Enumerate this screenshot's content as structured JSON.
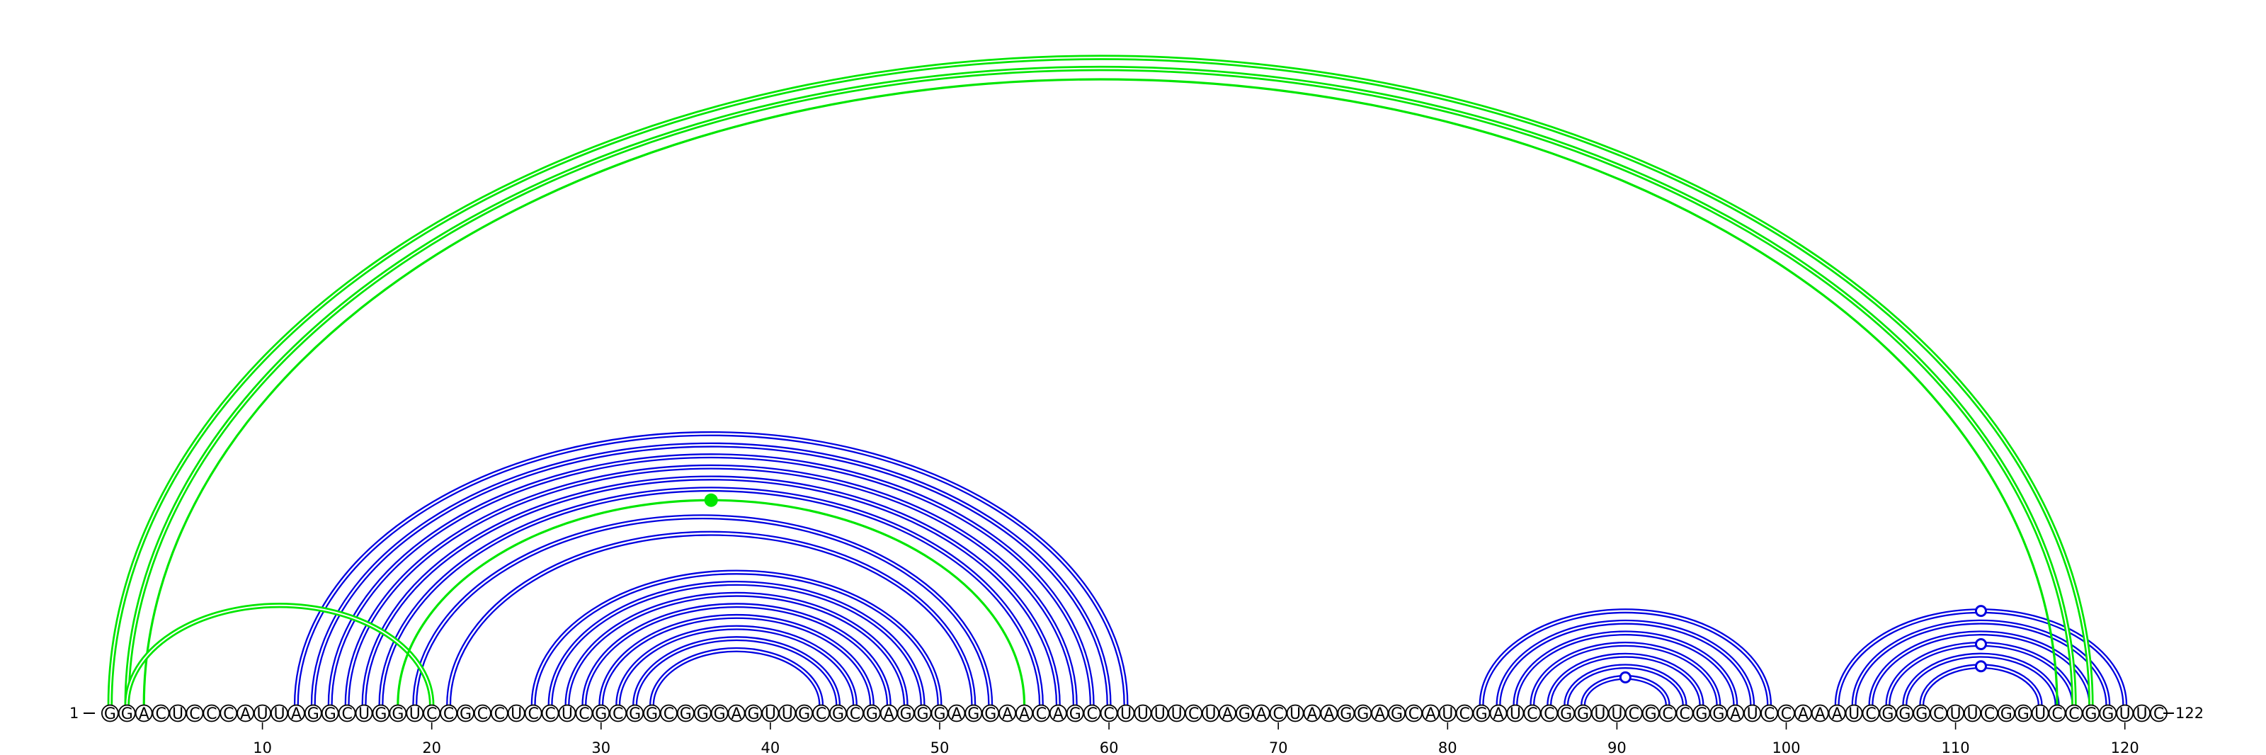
{
  "sequence": "GGACUCCCAUUAGGCUGGUCCGCCUCCUCGCGGCGGGAGUUGCGCGAGGGAGGAACAGCCUUUUCUAGACUAAGGAGCAUCGAUCCGGUUCGCCGGAUCCAAAUCGGGCUUCGGUCCGGUUC",
  "start_label": "1",
  "end_label": "122",
  "tick_labels": [
    "10",
    "20",
    "30",
    "40",
    "50",
    "60",
    "70",
    "80",
    "90",
    "100",
    "110",
    "120"
  ],
  "colors": {
    "canonical_arc": "#0000e0",
    "noncanonical_arc": "#00e600",
    "nucleotide_stroke": "#000000",
    "nucleotide_fill": "#ffffff"
  },
  "blue_pairs": [
    [
      12,
      61
    ],
    [
      13,
      60
    ],
    [
      14,
      59
    ],
    [
      15,
      58
    ],
    [
      16,
      57
    ],
    [
      17,
      56
    ],
    [
      19,
      53
    ],
    [
      21,
      52
    ],
    [
      26,
      50
    ],
    [
      27,
      49
    ],
    [
      28,
      48
    ],
    [
      29,
      47
    ],
    [
      30,
      46
    ],
    [
      31,
      45
    ],
    [
      32,
      44
    ],
    [
      33,
      43
    ],
    [
      82,
      99
    ],
    [
      83,
      98
    ],
    [
      84,
      97
    ],
    [
      85,
      96
    ],
    [
      86,
      95
    ],
    [
      87,
      94
    ],
    [
      88,
      93
    ],
    [
      103,
      120
    ],
    [
      104,
      119
    ],
    [
      105,
      118
    ],
    [
      106,
      117
    ],
    [
      107,
      116
    ],
    [
      108,
      115
    ]
  ],
  "green_pairs": [
    [
      1,
      118
    ],
    [
      2,
      117
    ],
    [
      3,
      116
    ],
    [
      2,
      20
    ],
    [
      18,
      55
    ]
  ],
  "markers": [
    {
      "type": "filled-circle",
      "color": "#00e600",
      "arc": [
        18,
        55
      ]
    },
    {
      "type": "open-circle",
      "color": "#0000e0",
      "arc": [
        88,
        93
      ]
    },
    {
      "type": "open-circle",
      "color": "#0000e0",
      "arc": [
        103,
        120
      ]
    },
    {
      "type": "open-circle",
      "color": "#0000e0",
      "arc": [
        106,
        117
      ]
    },
    {
      "type": "open-circle",
      "color": "#0000e0",
      "arc": [
        108,
        115
      ]
    }
  ]
}
